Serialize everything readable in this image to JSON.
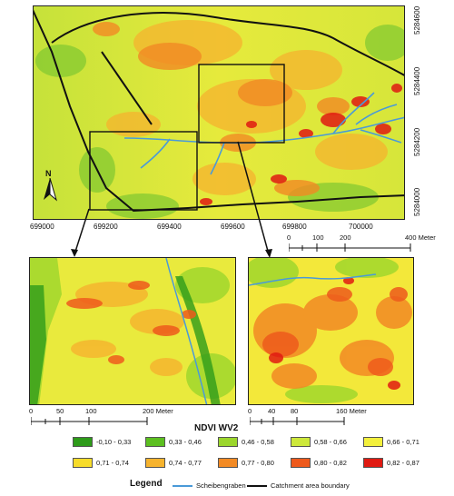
{
  "main_map": {
    "x_ticks": [
      "699000",
      "699200",
      "699400",
      "699600",
      "699800",
      "700000"
    ],
    "y_ticks": [
      "5284600",
      "5284400",
      "5284200",
      "5284000"
    ],
    "north_label": "N",
    "scale_labels": [
      "0",
      "100",
      "200",
      "400 Meter"
    ]
  },
  "inset_left": {
    "scale_labels": [
      "0",
      "50",
      "100",
      "200 Meter"
    ]
  },
  "inset_right": {
    "scale_labels": [
      "0",
      "40",
      "80",
      "160 Meter"
    ]
  },
  "legend": {
    "title": "NDVI WV2",
    "classes": [
      {
        "label": "-0,10 - 0,33",
        "color": "#2e9b1a"
      },
      {
        "label": "0,33 - 0,46",
        "color": "#5cbf20"
      },
      {
        "label": "0,46 - 0,58",
        "color": "#9bd62c"
      },
      {
        "label": "0,58 - 0,66",
        "color": "#cde83a"
      },
      {
        "label": "0,66 - 0,71",
        "color": "#f3f03c"
      },
      {
        "label": "0,71 - 0,74",
        "color": "#f7dc2a"
      },
      {
        "label": "0,74 - 0,77",
        "color": "#f6b32e"
      },
      {
        "label": "0,77 - 0,80",
        "color": "#f28a24"
      },
      {
        "label": "0,80 - 0,82",
        "color": "#ee5a1c"
      },
      {
        "label": "0,82 - 0,87",
        "color": "#e01a12"
      }
    ],
    "key_title": "Legend",
    "stream_label": "Scheibengraben",
    "stream_color": "#4a9ad8",
    "boundary_label": "Catchment area boundary",
    "boundary_color": "#111111"
  }
}
